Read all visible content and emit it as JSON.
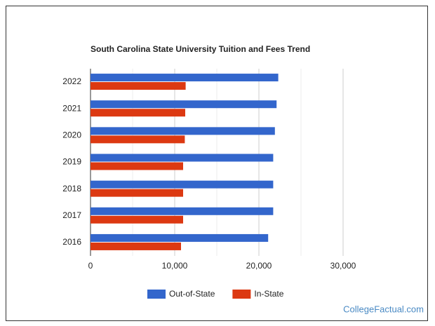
{
  "chart_data": {
    "type": "hbar",
    "title": "South Carolina State University Tuition and Fees Trend",
    "categories": [
      "2022",
      "2021",
      "2020",
      "2019",
      "2018",
      "2017",
      "2016"
    ],
    "series": [
      {
        "name": "Out-of-State",
        "color": "#3366cc",
        "values": [
          22300,
          22100,
          21900,
          21700,
          21700,
          21700,
          21100
        ]
      },
      {
        "name": "In-State",
        "color": "#dc3912",
        "values": [
          11300,
          11250,
          11200,
          11000,
          11000,
          11000,
          10750
        ]
      }
    ],
    "xlim": [
      0,
      30000
    ],
    "xticks": [
      0,
      {
        "value": 10000,
        "label": "10,000"
      },
      {
        "value": 20000,
        "label": "20,000"
      },
      {
        "value": 30000,
        "label": "30,000"
      }
    ],
    "x_minor_grid": [
      5000,
      15000,
      25000
    ],
    "grid": true,
    "legend": "bottom",
    "watermark": "CollegeFactual.com"
  }
}
